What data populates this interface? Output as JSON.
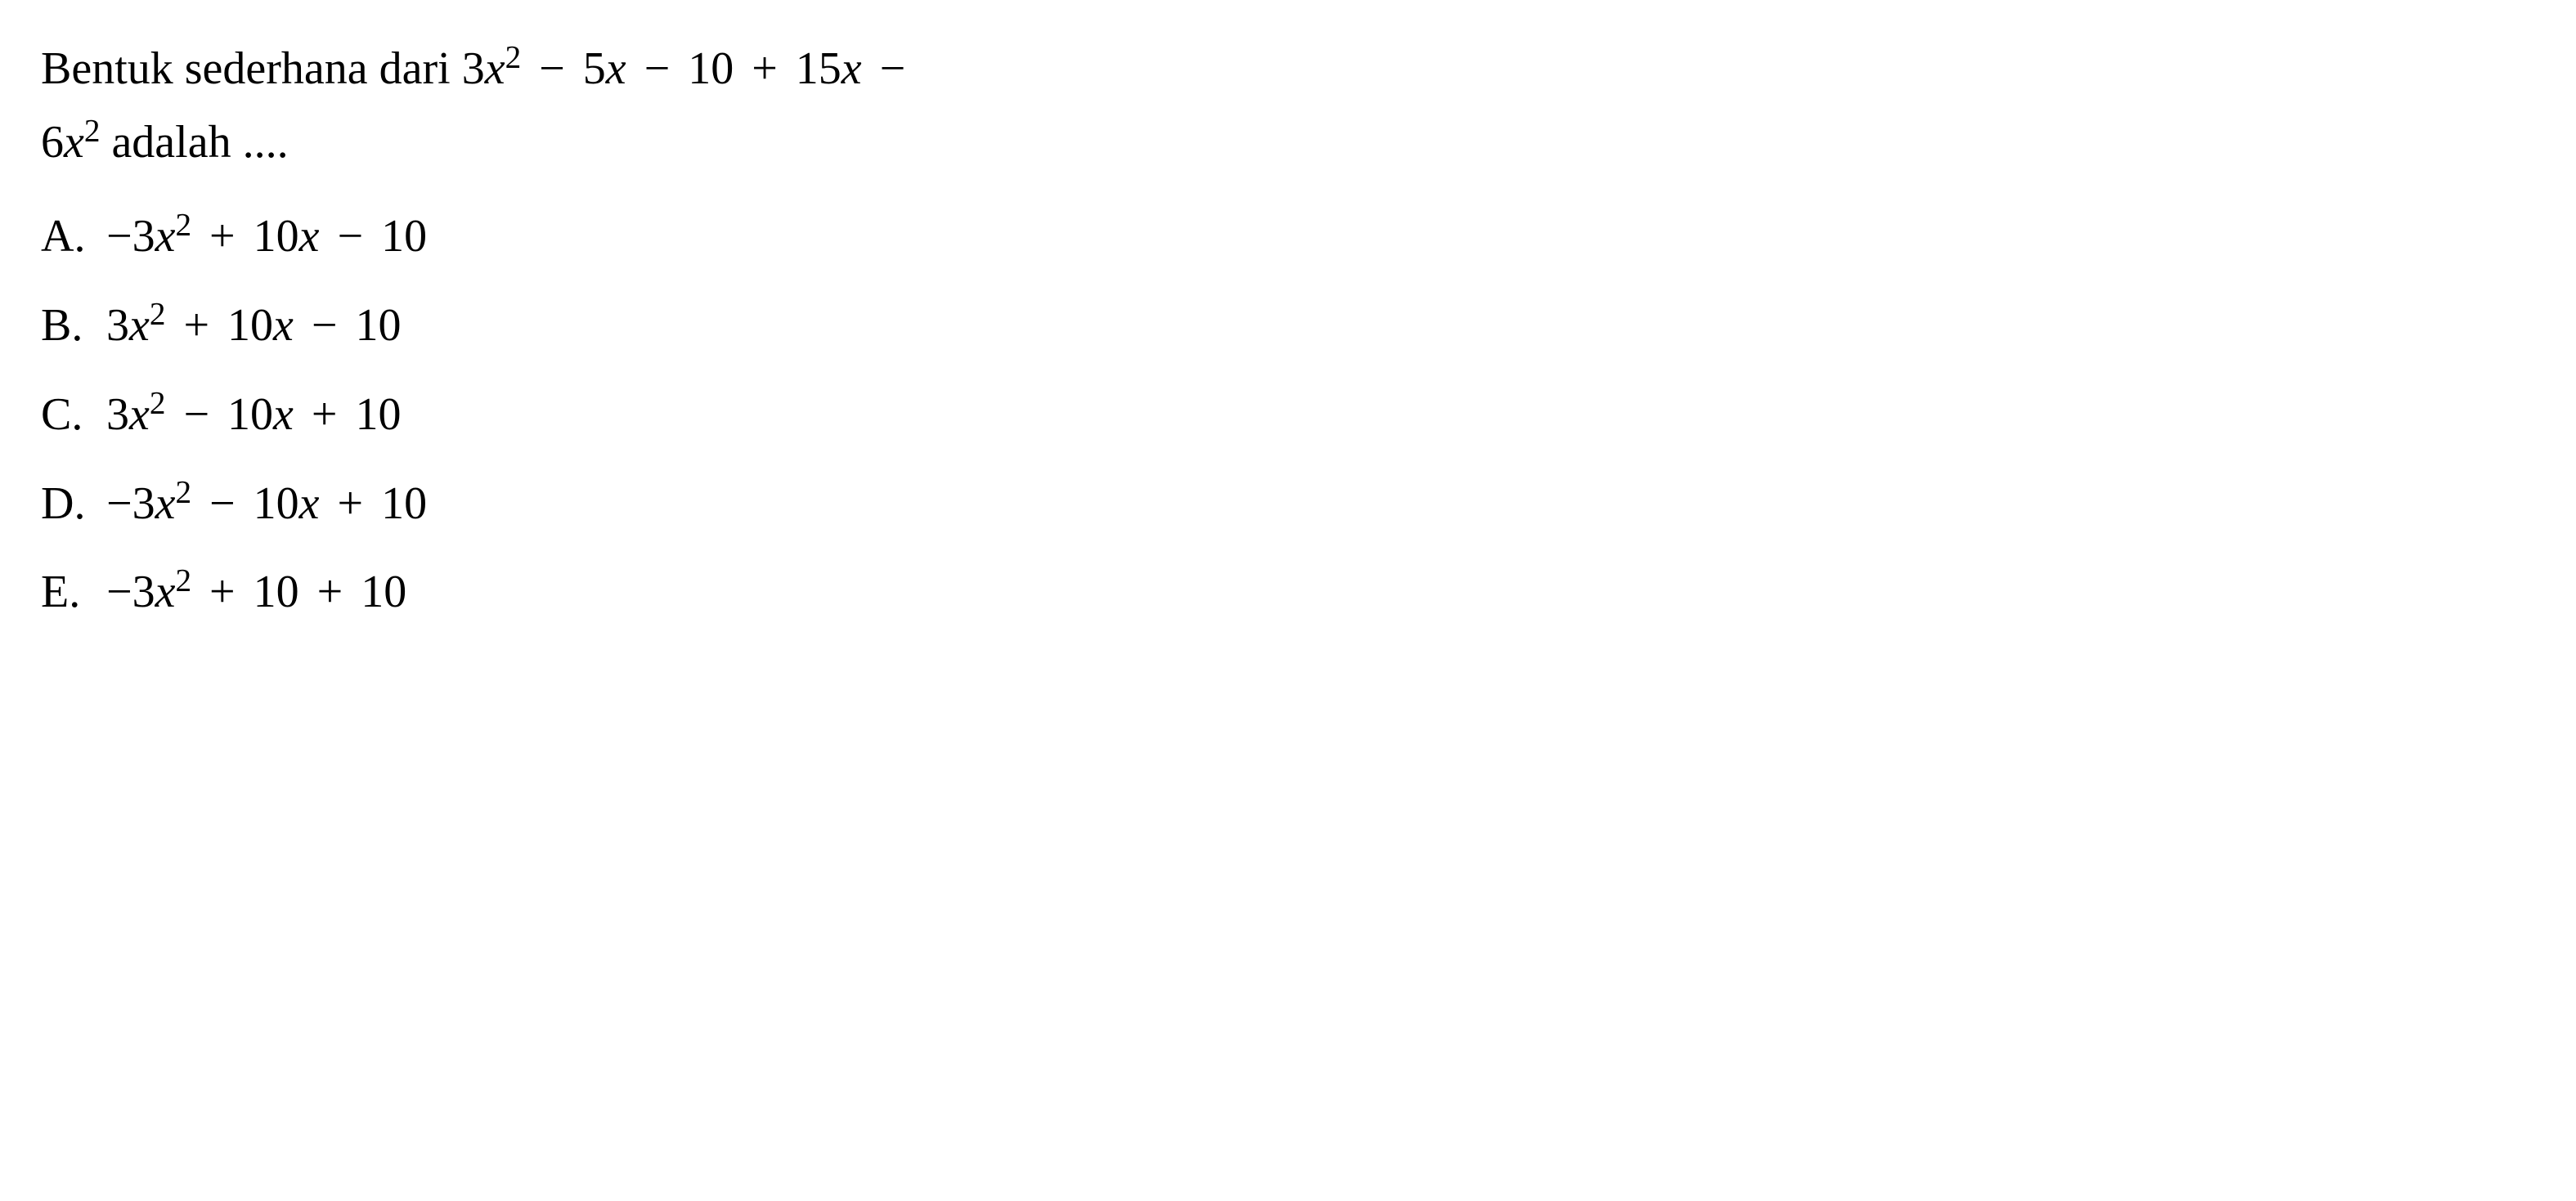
{
  "question": {
    "prefix": "Bentuk sederhana dari ",
    "expr_part1": "3",
    "expr_var1": "x",
    "expr_sup1": "2",
    "expr_op1": " − ",
    "expr_part2": "5",
    "expr_var2": "x",
    "expr_op2": " − ",
    "expr_part3": "10",
    "expr_op3": " + ",
    "expr_part4": "15",
    "expr_var4": "x",
    "expr_op4": " −",
    "line2_part1": "6",
    "line2_var1": "x",
    "line2_sup1": "2",
    "suffix": " adalah ...."
  },
  "options": {
    "a": {
      "letter": "A.",
      "c1": "−3",
      "v1": "x",
      "s1": "2",
      "o1": " + ",
      "c2": "10",
      "v2": "x",
      "o2": " − ",
      "c3": "10"
    },
    "b": {
      "letter": "B.",
      "c1": "3",
      "v1": "x",
      "s1": "2",
      "o1": " + ",
      "c2": "10",
      "v2": "x",
      "o2": " − ",
      "c3": "10"
    },
    "c": {
      "letter": "C.",
      "c1": "3",
      "v1": "x",
      "s1": "2",
      "o1": " − ",
      "c2": "10",
      "v2": "x",
      "o2": " + ",
      "c3": "10"
    },
    "d": {
      "letter": "D.",
      "c1": "−3",
      "v1": "x",
      "s1": "2",
      "o1": " − ",
      "c2": "10",
      "v2": "x",
      "o2": " + ",
      "c3": "10"
    },
    "e": {
      "letter": "E.",
      "c1": "−3",
      "v1": "x",
      "s1": "2",
      "o1": " + ",
      "c2": "10",
      "o2": " + ",
      "c3": "10"
    }
  },
  "style": {
    "background": "#ffffff",
    "text_color": "#000000",
    "font_family": "Times New Roman",
    "question_fontsize": 56,
    "option_fontsize": 56
  }
}
